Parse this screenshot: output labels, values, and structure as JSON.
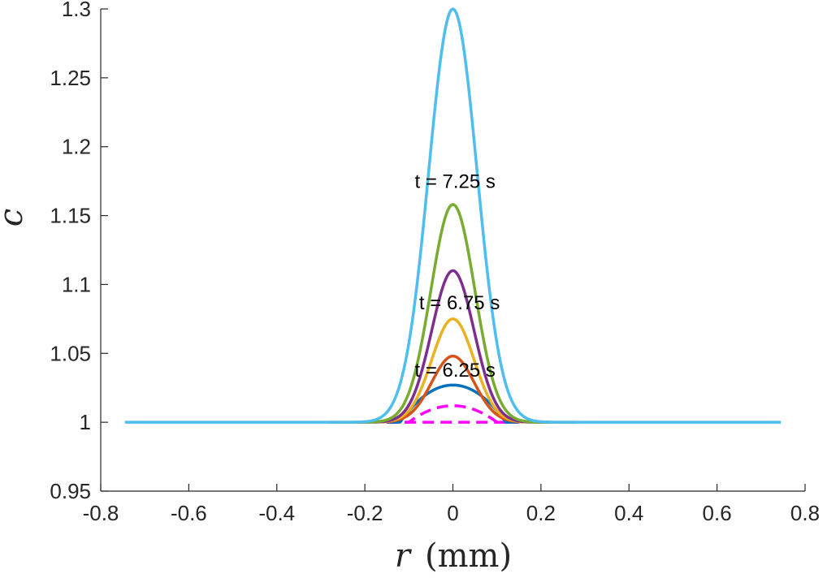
{
  "chart_data": {
    "type": "line",
    "title": "",
    "xlabel_var": "r",
    "xlabel_unit": "(mm)",
    "ylabel": "c",
    "xlim": [
      -0.8,
      0.8
    ],
    "ylim": [
      0.95,
      1.3
    ],
    "xticks": [
      -0.8,
      -0.6,
      -0.4,
      -0.2,
      0,
      0.2,
      0.4,
      0.6,
      0.8
    ],
    "xtick_labels": [
      "-0.8",
      "-0.6",
      "-0.4",
      "-0.2",
      "0",
      "0.2",
      "0.4",
      "0.6",
      "0.8"
    ],
    "yticks": [
      0.95,
      1,
      1.05,
      1.1,
      1.15,
      1.2,
      1.25,
      1.3
    ],
    "ytick_labels": [
      "0.95",
      "1",
      "1.05",
      "1.1",
      "1.15",
      "1.2",
      "1.25",
      "1.3"
    ],
    "grid": false,
    "legend": "none",
    "series": [
      {
        "color": "#FF00FF",
        "dashed": true,
        "shape": "parabolic",
        "peak": 1.0,
        "half_width": 0.15,
        "x_range": [
          -0.15,
          0.15
        ]
      },
      {
        "color": "#FF00FF",
        "dashed": true,
        "shape": "parabolic",
        "peak": 1.012,
        "half_width": 0.1,
        "x_range": [
          -0.15,
          0.15
        ]
      },
      {
        "color": "#0072BD",
        "dashed": false,
        "shape": "parabolic",
        "peak": 1.027,
        "half_width": 0.12,
        "x_range": [
          -0.15,
          0.15
        ]
      },
      {
        "color": "#D95319",
        "dashed": false,
        "shape": "gaussian",
        "peak": 1.048,
        "sigma": 0.048,
        "x_range": [
          -0.16,
          0.16
        ]
      },
      {
        "color": "#EDB120",
        "dashed": false,
        "shape": "gaussian",
        "peak": 1.075,
        "sigma": 0.048,
        "x_range": [
          -0.18,
          0.18
        ]
      },
      {
        "color": "#7E2F8E",
        "dashed": false,
        "shape": "gaussian",
        "peak": 1.11,
        "sigma": 0.048,
        "x_range": [
          -0.22,
          0.22
        ]
      },
      {
        "color": "#77AC30",
        "dashed": false,
        "shape": "gaussian",
        "peak": 1.158,
        "sigma": 0.05,
        "x_range": [
          -0.28,
          0.28
        ]
      },
      {
        "color": "#4DBEEE",
        "dashed": false,
        "shape": "gaussian",
        "peak": 1.3,
        "sigma": 0.055,
        "x_range": [
          -0.745,
          0.745
        ]
      }
    ],
    "annotations": [
      {
        "text": "t = 7.25 s",
        "x": 0.005,
        "y": 1.17
      },
      {
        "text": "t = 6.75 s",
        "x": 0.015,
        "y": 1.082
      },
      {
        "text": "t = 6.25 s",
        "x": 0.005,
        "y": 1.033
      }
    ]
  }
}
